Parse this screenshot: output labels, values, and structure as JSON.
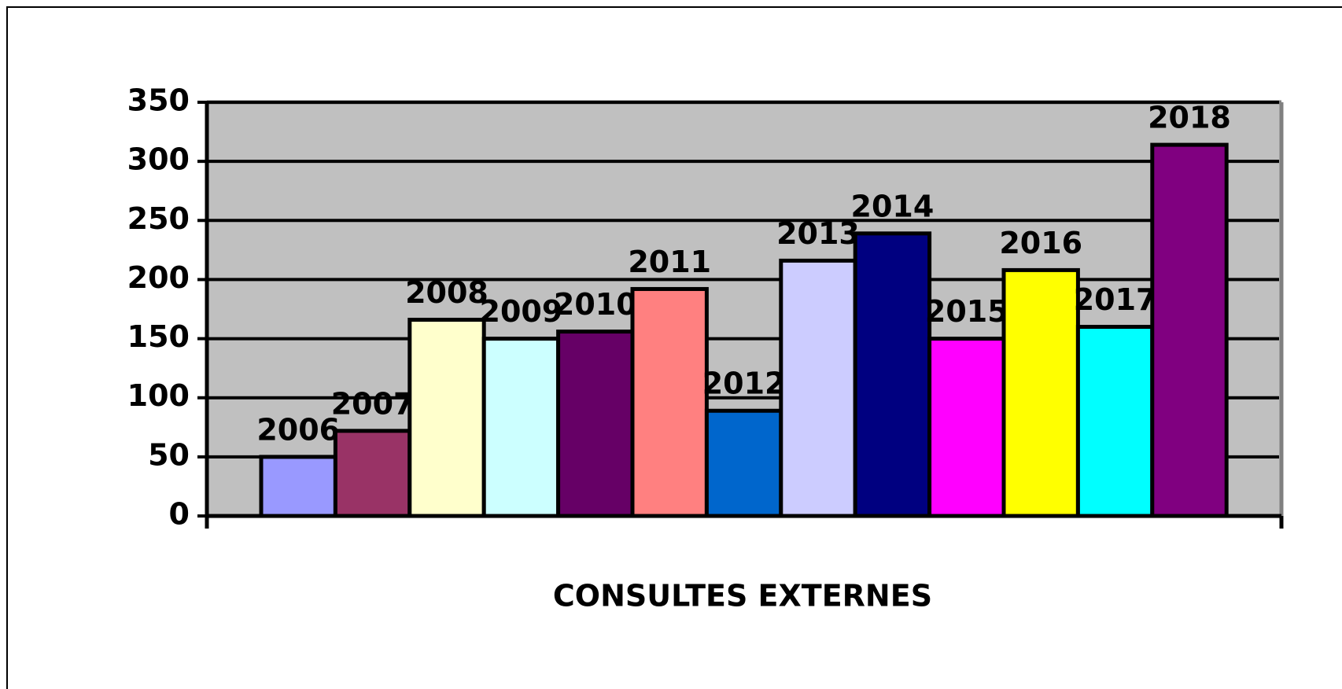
{
  "chart_data": {
    "type": "bar",
    "x_label": "CONSULTES EXTERNES",
    "categories": [
      "2006",
      "2007",
      "2008",
      "2009",
      "2010",
      "2011",
      "2012",
      "2013",
      "2014",
      "2015",
      "2016",
      "2017",
      "2018"
    ],
    "values": [
      50,
      72,
      166,
      150,
      156,
      192,
      89,
      216,
      239,
      150,
      208,
      160,
      314
    ],
    "colors": [
      "#9999FF",
      "#993366",
      "#FFFFCC",
      "#CCFFFF",
      "#660066",
      "#FF8080",
      "#0066CC",
      "#CCCCFF",
      "#000080",
      "#FF00FF",
      "#FFFF00",
      "#00FFFF",
      "#800080"
    ],
    "ylim": [
      0,
      350
    ],
    "yticks": [
      0,
      50,
      100,
      150,
      200,
      250,
      300,
      350
    ],
    "grid": true
  }
}
